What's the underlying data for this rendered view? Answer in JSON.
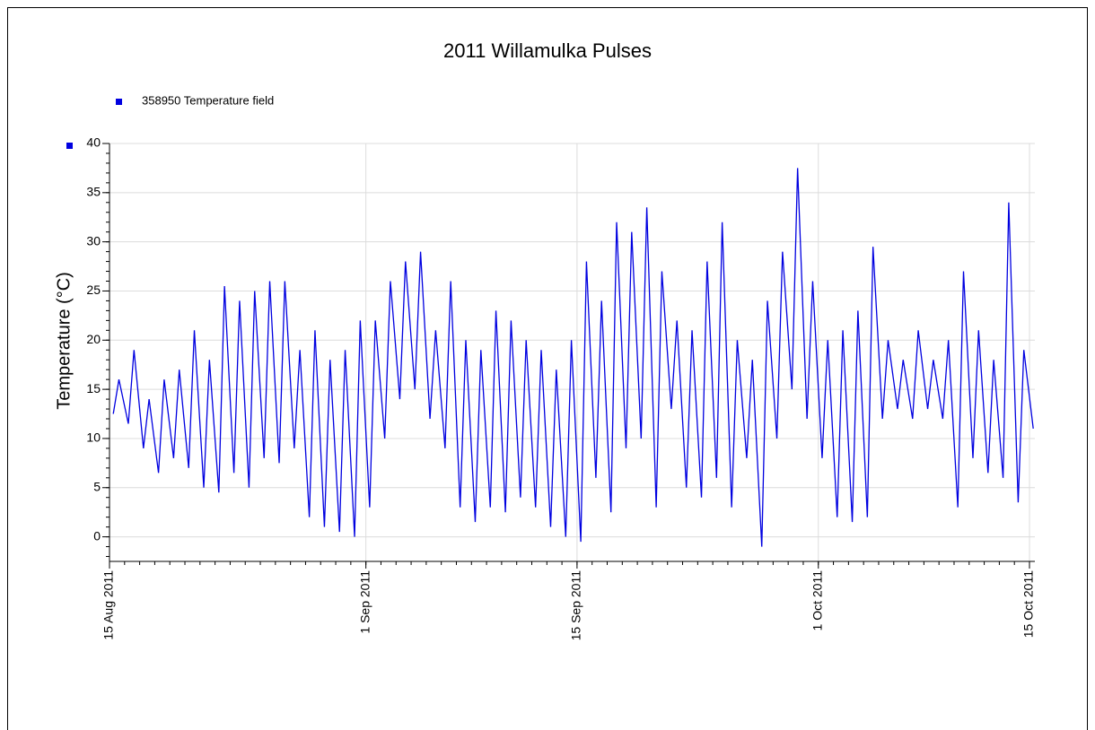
{
  "chart_data": {
    "type": "line",
    "title": "2011 Willamulka Pulses",
    "y_label": "Temperature (°C)",
    "x": [
      "2011-08-15T06:00",
      "2011-08-15T15:00",
      "2011-08-16T06:00",
      "2011-08-16T15:00",
      "2011-08-17T06:00",
      "2011-08-17T15:00",
      "2011-08-18T06:00",
      "2011-08-18T15:00",
      "2011-08-19T06:00",
      "2011-08-19T15:00",
      "2011-08-20T06:00",
      "2011-08-20T15:00",
      "2011-08-21T06:00",
      "2011-08-21T15:00",
      "2011-08-22T06:00",
      "2011-08-22T15:00",
      "2011-08-23T06:00",
      "2011-08-23T15:00",
      "2011-08-24T06:00",
      "2011-08-24T15:00",
      "2011-08-25T06:00",
      "2011-08-25T15:00",
      "2011-08-26T06:00",
      "2011-08-26T15:00",
      "2011-08-27T06:00",
      "2011-08-27T15:00",
      "2011-08-28T06:00",
      "2011-08-28T15:00",
      "2011-08-29T06:00",
      "2011-08-29T15:00",
      "2011-08-30T06:00",
      "2011-08-30T15:00",
      "2011-08-31T06:00",
      "2011-08-31T15:00",
      "2011-09-01T06:00",
      "2011-09-01T15:00",
      "2011-09-02T06:00",
      "2011-09-02T15:00",
      "2011-09-03T06:00",
      "2011-09-03T15:00",
      "2011-09-04T06:00",
      "2011-09-04T15:00",
      "2011-09-05T06:00",
      "2011-09-05T15:00",
      "2011-09-06T06:00",
      "2011-09-06T15:00",
      "2011-09-07T06:00",
      "2011-09-07T15:00",
      "2011-09-08T06:00",
      "2011-09-08T15:00",
      "2011-09-09T06:00",
      "2011-09-09T15:00",
      "2011-09-10T06:00",
      "2011-09-10T15:00",
      "2011-09-11T06:00",
      "2011-09-11T15:00",
      "2011-09-12T06:00",
      "2011-09-12T15:00",
      "2011-09-13T06:00",
      "2011-09-13T15:00",
      "2011-09-14T06:00",
      "2011-09-14T15:00",
      "2011-09-15T06:00",
      "2011-09-15T15:00",
      "2011-09-16T06:00",
      "2011-09-16T15:00",
      "2011-09-17T06:00",
      "2011-09-17T15:00",
      "2011-09-18T06:00",
      "2011-09-18T15:00",
      "2011-09-19T06:00",
      "2011-09-19T15:00",
      "2011-09-20T06:00",
      "2011-09-20T15:00",
      "2011-09-21T06:00",
      "2011-09-21T15:00",
      "2011-09-22T06:00",
      "2011-09-22T15:00",
      "2011-09-23T06:00",
      "2011-09-23T15:00",
      "2011-09-24T06:00",
      "2011-09-24T15:00",
      "2011-09-25T06:00",
      "2011-09-25T15:00",
      "2011-09-26T06:00",
      "2011-09-26T15:00",
      "2011-09-27T06:00",
      "2011-09-27T15:00",
      "2011-09-28T06:00",
      "2011-09-28T15:00",
      "2011-09-29T06:00",
      "2011-09-29T15:00",
      "2011-09-30T06:00",
      "2011-09-30T15:00",
      "2011-10-01T06:00",
      "2011-10-01T15:00",
      "2011-10-02T06:00",
      "2011-10-02T15:00",
      "2011-10-03T06:00",
      "2011-10-03T15:00",
      "2011-10-04T06:00",
      "2011-10-04T15:00",
      "2011-10-05T06:00",
      "2011-10-05T15:00",
      "2011-10-06T06:00",
      "2011-10-06T15:00",
      "2011-10-07T06:00",
      "2011-10-07T15:00",
      "2011-10-08T06:00",
      "2011-10-08T15:00",
      "2011-10-09T06:00",
      "2011-10-09T15:00",
      "2011-10-10T06:00",
      "2011-10-10T15:00",
      "2011-10-11T06:00",
      "2011-10-11T15:00",
      "2011-10-12T06:00",
      "2011-10-12T15:00",
      "2011-10-13T06:00",
      "2011-10-13T15:00",
      "2011-10-14T06:00",
      "2011-10-14T15:00",
      "2011-10-15T06:00"
    ],
    "series": [
      {
        "name": "358950  Temperature field",
        "color": "#0000e0",
        "values": [
          12.5,
          16,
          11.5,
          19,
          9,
          14,
          6.5,
          16,
          8,
          17,
          7,
          21,
          5,
          18,
          4.5,
          25.5,
          6.5,
          24,
          5,
          25,
          8,
          26,
          7.5,
          26,
          9,
          19,
          2,
          21,
          1,
          18,
          0.5,
          19,
          0,
          22,
          3,
          22,
          10,
          26,
          14,
          28,
          15,
          29,
          12,
          21,
          9,
          26,
          3,
          20,
          1.5,
          19,
          3,
          23,
          2.5,
          22,
          4,
          20,
          3,
          19,
          1,
          17,
          0,
          20,
          -0.5,
          28,
          6,
          24,
          2.5,
          32,
          9,
          31,
          10,
          33.5,
          3,
          27,
          13,
          22,
          5,
          21,
          4,
          28,
          6,
          32,
          3,
          20,
          8,
          18,
          -1,
          24,
          10,
          29,
          15,
          37.5,
          12,
          26,
          8,
          20,
          2,
          21,
          1.5,
          23,
          2,
          29.5,
          12,
          20,
          13,
          18,
          12,
          21,
          13,
          18,
          12,
          20,
          3,
          27,
          8,
          21,
          6.5,
          18,
          6,
          34,
          3.5,
          19,
          11
        ]
      }
    ],
    "xlim": [
      "2011-08-15T00:00",
      "2011-10-15T00:00"
    ],
    "xticks": [
      {
        "value": "2011-08-15T00:00",
        "label": "15 Aug 2011"
      },
      {
        "value": "2011-09-01T00:00",
        "label": "1 Sep 2011"
      },
      {
        "value": "2011-09-15T00:00",
        "label": "15 Sep 2011"
      },
      {
        "value": "2011-10-01T00:00",
        "label": "1 Oct 2011"
      },
      {
        "value": "2011-10-15T00:00",
        "label": "15 Oct 2011"
      }
    ],
    "ylim": [
      -2.5,
      40
    ],
    "yticks": [
      0,
      5,
      10,
      15,
      20,
      25,
      30,
      35,
      40
    ],
    "grid": true
  }
}
